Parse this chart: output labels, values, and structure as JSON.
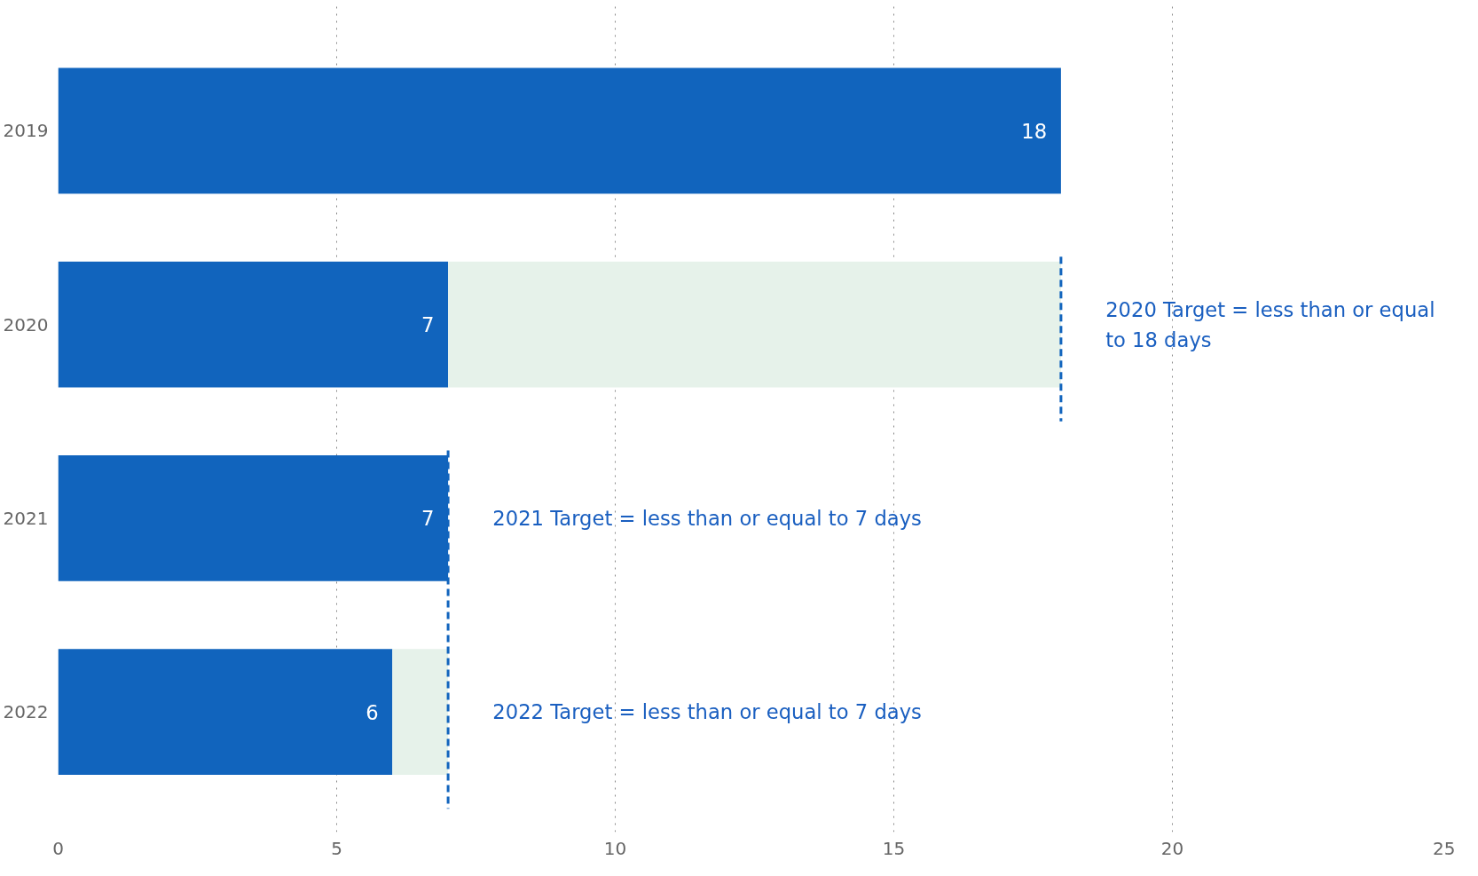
{
  "chart_data": {
    "type": "bar",
    "orientation": "horizontal",
    "stacked": true,
    "categories": [
      "2019",
      "2020",
      "2021",
      "2022"
    ],
    "series": [
      {
        "color": "#1164bd",
        "values": [
          18,
          7,
          7,
          6
        ],
        "value_labels": [
          "18",
          "7",
          "7",
          "6"
        ]
      },
      {
        "color": "#e6f2ea",
        "values": [
          null,
          11,
          null,
          1
        ]
      }
    ],
    "xlim": [
      0,
      25
    ],
    "xticks": [
      0,
      5,
      10,
      15,
      20,
      25
    ],
    "grid": "x",
    "ref_lines": [
      {
        "axis": "x",
        "value": 18,
        "label": "2020 Target = less than or equal to 18 days",
        "color": "#1164bd",
        "line_style": "dashed"
      },
      {
        "axis": "x",
        "value": 7,
        "label": "2021 Target = less than or equal to 7 days",
        "color": "#1164bd",
        "line_style": "dashed"
      }
    ],
    "annotations": [
      "2022 Target = less than or equal to 7 days"
    ]
  }
}
